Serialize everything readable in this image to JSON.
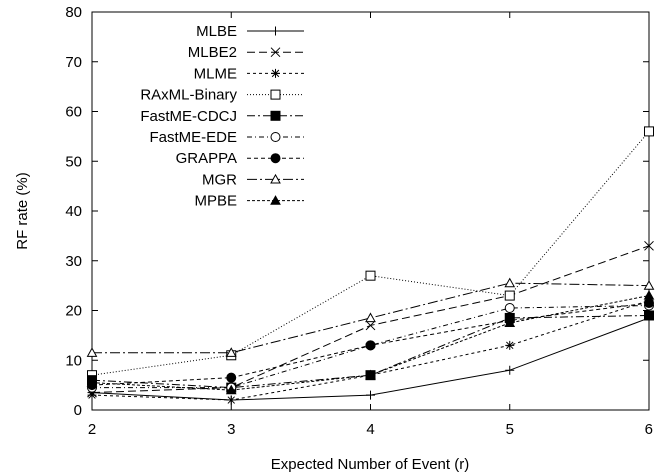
{
  "chart_data": {
    "type": "line",
    "title": "",
    "xlabel": "Expected Number of Event (r)",
    "ylabel": "RF rate (%)",
    "x": [
      2,
      3,
      4,
      5,
      6
    ],
    "xlim": [
      2,
      6
    ],
    "ylim": [
      0,
      80
    ],
    "xticks": [
      "2",
      "3",
      "4",
      "5",
      "6"
    ],
    "yticks": [
      "0",
      "10",
      "20",
      "30",
      "40",
      "50",
      "60",
      "70",
      "80"
    ],
    "grid": false,
    "legend_position": "top-left",
    "series": [
      {
        "name": "MLBE",
        "values": [
          3.5,
          2.0,
          3.0,
          8.0,
          18.5
        ],
        "marker": "plus",
        "dash": "none"
      },
      {
        "name": "MLBE2",
        "values": [
          3.5,
          4.5,
          17.0,
          23.0,
          33.0
        ],
        "marker": "cross",
        "dash": "8,4"
      },
      {
        "name": "MLME",
        "values": [
          3.0,
          2.0,
          7.0,
          13.0,
          22.0
        ],
        "marker": "star",
        "dash": "3,3"
      },
      {
        "name": "RAxML-Binary",
        "values": [
          7.0,
          11.0,
          27.0,
          23.0,
          56.0
        ],
        "marker": "square-open",
        "dash": "1,2"
      },
      {
        "name": "FastME-CDCJ",
        "values": [
          6.0,
          4.5,
          7.0,
          18.5,
          19.0
        ],
        "marker": "square-filled",
        "dash": "8,3,2,3"
      },
      {
        "name": "FastME-EDE",
        "values": [
          4.5,
          4.5,
          13.0,
          20.5,
          21.0
        ],
        "marker": "circle-open",
        "dash": "5,3,1,3"
      },
      {
        "name": "GRAPPA",
        "values": [
          5.0,
          6.5,
          13.0,
          18.0,
          21.5
        ],
        "marker": "circle-filled",
        "dash": "4,3"
      },
      {
        "name": "MGR",
        "values": [
          11.5,
          11.5,
          18.5,
          25.5,
          25.0
        ],
        "marker": "triangle-open",
        "dash": "10,3,2,3"
      },
      {
        "name": "MPBE",
        "values": [
          5.5,
          4.0,
          7.0,
          17.5,
          23.0
        ],
        "marker": "triangle-filled",
        "dash": "3,2"
      }
    ]
  }
}
